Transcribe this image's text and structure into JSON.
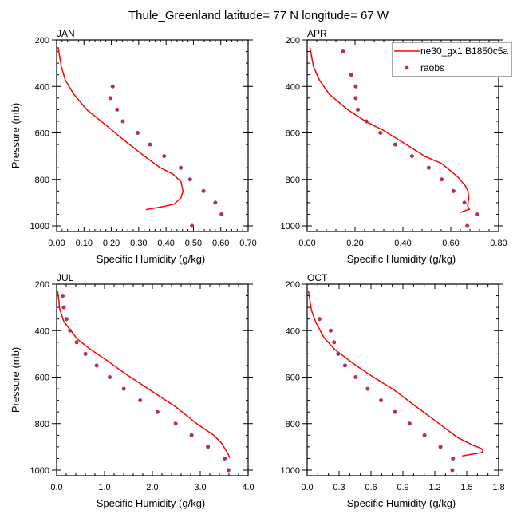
{
  "title": "Thule_Greenland  latitude= 77 N longitude= 67 W",
  "legend": {
    "placement": "top-right",
    "items": [
      {
        "label": "ne30_gx1.B1850c5a",
        "kind": "line",
        "color": "#ff0000"
      },
      {
        "label": "raobs",
        "kind": "marker",
        "color": "#b03060"
      }
    ]
  },
  "chart_data": [
    {
      "type": "line",
      "panel_title": "JAN",
      "xlabel": "Specific Humidity (g/kg)",
      "ylabel": "Pressure (mb)",
      "xlim": [
        0,
        0.7
      ],
      "ylim": [
        200,
        1000
      ],
      "y_inverted": true,
      "xticks": [
        "0.00",
        "0.10",
        "0.20",
        "0.30",
        "0.40",
        "0.50",
        "0.60",
        "0.70"
      ],
      "xtick_values": [
        0,
        0.1,
        0.2,
        0.3,
        0.4,
        0.5,
        0.6,
        0.7
      ],
      "xminor_per_major": 5,
      "yticks": [
        "200",
        "400",
        "600",
        "800",
        "1000"
      ],
      "ytick_values": [
        200,
        400,
        600,
        800,
        1000
      ],
      "yminor_step": 50,
      "show_ylabel": true,
      "series": [
        {
          "name": "ne30_gx1.B1850c5a",
          "kind": "line",
          "x": [
            0.005,
            0.017,
            0.031,
            0.062,
            0.112,
            0.191,
            0.249,
            0.318,
            0.376,
            0.425,
            0.454,
            0.462,
            0.454,
            0.43,
            0.398,
            0.326
          ],
          "y": [
            231,
            313,
            371,
            433,
            502,
            577,
            634,
            697,
            748,
            777,
            809,
            851,
            880,
            906,
            915,
            930
          ]
        },
        {
          "name": "raobs",
          "kind": "marker",
          "x": [
            0.205,
            0.196,
            0.221,
            0.242,
            0.296,
            0.341,
            0.393,
            0.454,
            0.488,
            0.537,
            0.58,
            0.603,
            0.495
          ],
          "y": [
            400,
            450,
            500,
            550,
            600,
            650,
            700,
            750,
            800,
            850,
            900,
            950,
            1000
          ]
        }
      ]
    },
    {
      "type": "line",
      "panel_title": "APR",
      "xlabel": "Specific Humidity (g/kg)",
      "ylabel": "Pressure (mb)",
      "xlim": [
        0,
        0.8
      ],
      "ylim": [
        200,
        1000
      ],
      "y_inverted": true,
      "xticks": [
        "0.00",
        "0.20",
        "0.40",
        "0.60",
        "0.80"
      ],
      "xtick_values": [
        0,
        0.2,
        0.4,
        0.6,
        0.8
      ],
      "xminor_per_major": 5,
      "yticks": [
        "200",
        "400",
        "600",
        "800",
        "1000"
      ],
      "ytick_values": [
        200,
        400,
        600,
        800,
        1000
      ],
      "yminor_step": 50,
      "show_ylabel": false,
      "series": [
        {
          "name": "ne30_gx1.B1850c5a",
          "kind": "line",
          "x": [
            0.011,
            0.026,
            0.05,
            0.092,
            0.172,
            0.25,
            0.317,
            0.406,
            0.494,
            0.561,
            0.628,
            0.661,
            0.672,
            0.675,
            0.67,
            0.678,
            0.637
          ],
          "y": [
            231,
            313,
            371,
            433,
            502,
            554,
            588,
            645,
            702,
            731,
            788,
            828,
            851,
            883,
            914,
            928,
            943
          ]
        },
        {
          "name": "raobs",
          "kind": "marker",
          "x": [
            0.15,
            0.184,
            0.203,
            0.203,
            0.212,
            0.247,
            0.306,
            0.368,
            0.438,
            0.508,
            0.562,
            0.611,
            0.657,
            0.709,
            0.669
          ],
          "y": [
            250,
            350,
            400,
            450,
            500,
            550,
            600,
            650,
            700,
            750,
            800,
            850,
            900,
            950,
            1000
          ]
        }
      ]
    },
    {
      "type": "line",
      "panel_title": "JUL",
      "xlabel": "Specific Humidity (g/kg)",
      "ylabel": "Pressure (mb)",
      "xlim": [
        0,
        4.0
      ],
      "ylim": [
        200,
        1000
      ],
      "y_inverted": true,
      "xticks": [
        "0.0",
        "1.0",
        "2.0",
        "3.0",
        "4.0"
      ],
      "xtick_values": [
        0,
        1,
        2,
        3,
        4
      ],
      "xminor_per_major": 5,
      "yticks": [
        "200",
        "400",
        "600",
        "800",
        "1000"
      ],
      "ytick_values": [
        200,
        400,
        600,
        800,
        1000
      ],
      "yminor_step": 50,
      "show_ylabel": true,
      "series": [
        {
          "name": "ne30_gx1.B1850c5a",
          "kind": "line",
          "x": [
            0.022,
            0.067,
            0.15,
            0.345,
            0.429,
            0.708,
            1.042,
            1.432,
            1.933,
            2.49,
            2.936,
            3.27,
            3.437,
            3.576,
            3.616
          ],
          "y": [
            230,
            310,
            361,
            413,
            436,
            481,
            527,
            585,
            653,
            728,
            802,
            848,
            882,
            928,
            948
          ]
        },
        {
          "name": "raobs",
          "kind": "marker",
          "x": [
            0.128,
            0.15,
            0.206,
            0.279,
            0.418,
            0.602,
            0.836,
            1.109,
            1.404,
            1.744,
            2.106,
            2.485,
            2.819,
            3.159,
            3.51,
            3.588
          ],
          "y": [
            250,
            300,
            350,
            400,
            450,
            500,
            550,
            600,
            650,
            700,
            750,
            800,
            850,
            900,
            950,
            1000
          ]
        }
      ]
    },
    {
      "type": "line",
      "panel_title": "OCT",
      "xlabel": "Specific Humidity (g/kg)",
      "ylabel": "Pressure (mb)",
      "xlim": [
        0,
        1.8
      ],
      "ylim": [
        200,
        1000
      ],
      "y_inverted": true,
      "xticks": [
        "0.0",
        "0.3",
        "0.6",
        "0.9",
        "1.2",
        "1.5",
        "1.8"
      ],
      "xtick_values": [
        0,
        0.3,
        0.6,
        0.9,
        1.2,
        1.5,
        1.8
      ],
      "xminor_per_major": 3,
      "yticks": [
        "200",
        "400",
        "600",
        "800",
        "1000"
      ],
      "ytick_values": [
        200,
        400,
        600,
        800,
        1000
      ],
      "yminor_step": 50,
      "show_ylabel": false,
      "series": [
        {
          "name": "ne30_gx1.B1850c5a",
          "kind": "line",
          "x": [
            0.013,
            0.038,
            0.083,
            0.158,
            0.258,
            0.459,
            0.609,
            0.81,
            1.01,
            1.211,
            1.411,
            1.562,
            1.637,
            1.654,
            1.642,
            1.457
          ],
          "y": [
            230,
            310,
            367,
            430,
            481,
            550,
            596,
            653,
            722,
            790,
            859,
            894,
            907,
            916,
            924,
            939
          ]
        },
        {
          "name": "raobs",
          "kind": "marker",
          "x": [
            0.115,
            0.221,
            0.253,
            0.291,
            0.356,
            0.456,
            0.569,
            0.694,
            0.825,
            0.963,
            1.103,
            1.253,
            1.371,
            1.364
          ],
          "y": [
            350,
            400,
            450,
            500,
            550,
            600,
            650,
            700,
            750,
            800,
            850,
            900,
            950,
            1000
          ]
        }
      ]
    }
  ]
}
